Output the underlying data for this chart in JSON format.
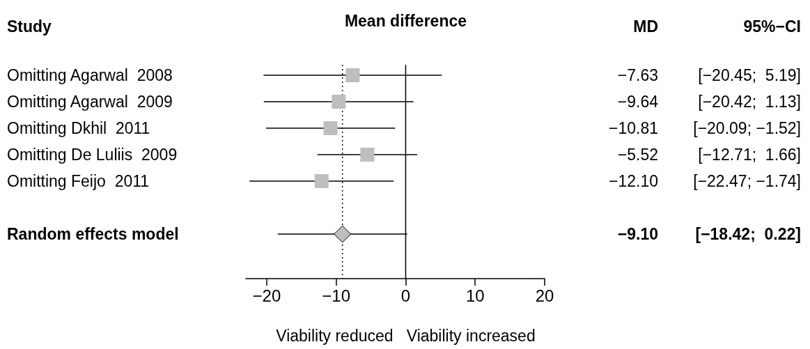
{
  "chart_data": {
    "type": "scatter",
    "orientation": "horizontal",
    "title": "Mean difference",
    "ylabel": "Study",
    "xlabel": "Viability reduced   Viability increased",
    "categories": [
      "Omitting Agarwal  2008",
      "Omitting Agarwal  2009",
      "Omitting Dkhil  2011",
      "Omitting De Luliis  2009",
      "Omitting Feijo  2011",
      null,
      "Random effects model"
    ],
    "series": [
      {
        "color": "#bebebe",
        "marker": "square",
        "values": [
          -7.63,
          -9.64,
          -10.81,
          -5.52,
          -12.1,
          null,
          null
        ],
        "errors": [
          [
            -20.45,
            5.19
          ],
          [
            -20.42,
            1.13
          ],
          [
            -20.09,
            -1.52
          ],
          [
            -12.71,
            1.66
          ],
          [
            -22.47,
            -1.74
          ],
          null,
          null
        ],
        "value_labels": [
          "−7.63 [−20.45;  5.19]",
          "−9.64 [−20.42;  1.13]",
          "−10.81 [−20.09; −1.52]",
          "−5.52 [−12.71;  1.66]",
          "−12.10 [−22.47; −1.74]",
          null,
          null
        ]
      },
      {
        "color": "#bebebe",
        "marker": "diamond",
        "values": [
          null,
          null,
          null,
          null,
          null,
          null,
          -9.1
        ],
        "errors": [
          null,
          null,
          null,
          null,
          null,
          null,
          [
            -18.42,
            0.22
          ]
        ],
        "value_labels": [
          null,
          null,
          null,
          null,
          null,
          null,
          "−9.10 [−18.42;  0.22]"
        ]
      }
    ],
    "annotations": [
      "MD",
      "95%−CI"
    ],
    "xlim": [
      -23,
      20
    ],
    "xticks": [
      -20,
      -10,
      0,
      10,
      20
    ],
    "ref_lines": [
      {
        "axis": "x",
        "value": 0,
        "line_style": "solid",
        "color": "#000000"
      },
      {
        "axis": "x",
        "value": -9.1,
        "line_style": "dotted",
        "color": "#000000"
      }
    ],
    "grid": false
  }
}
